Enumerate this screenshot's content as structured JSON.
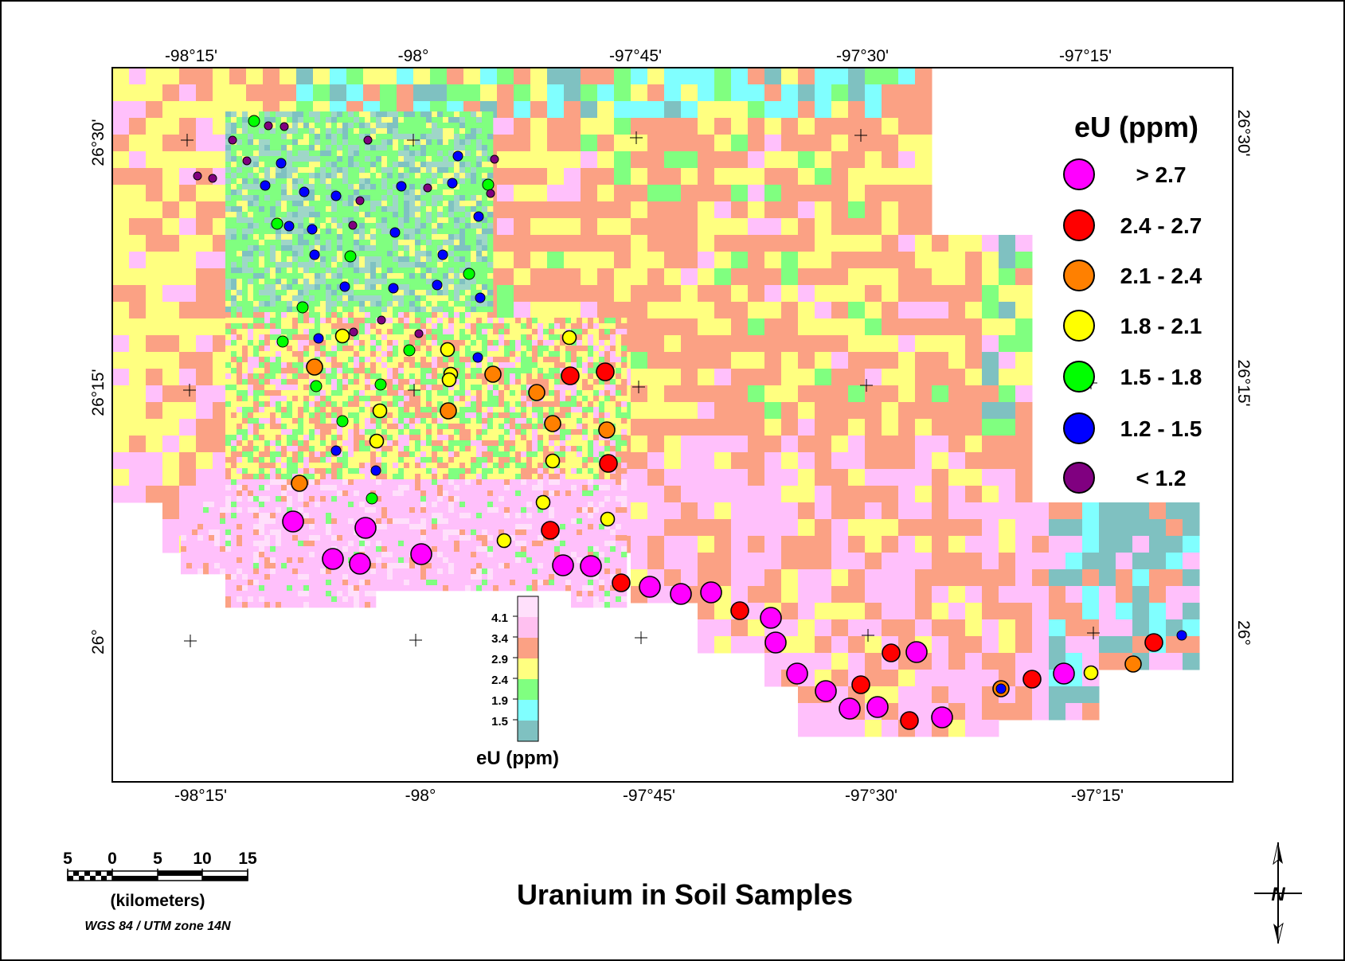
{
  "map": {
    "title": "Uranium in Soil Samples",
    "projection": "WGS 84 / UTM zone 14N",
    "scale_bar": {
      "labels": [
        "5",
        "0",
        "5",
        "10",
        "15"
      ],
      "unit": "(kilometers)"
    },
    "longitude_ticks": [
      "-98°15'",
      "-98°",
      "-97°45'",
      "-97°30'",
      "-97°15'"
    ],
    "latitude_ticks": [
      "26°30'",
      "26°15'",
      "26°"
    ],
    "north_arrow_label": "N",
    "colors": {
      "teal": "#7fc1c1",
      "cyan": "#80ffff",
      "green": "#80ff80",
      "yellow": "#ffff80",
      "salmon": "#fba184",
      "pink": "#ffc0fb",
      "white": "#ffffff"
    }
  },
  "colorbar": {
    "title": "eU (ppm)",
    "labels": [
      "4.1",
      "3.4",
      "2.9",
      "2.4",
      "1.9",
      "1.5"
    ],
    "colors": [
      "#ffe0fb",
      "#ffc0f0",
      "#fba184",
      "#ffff80",
      "#80ff80",
      "#80ffff",
      "#7fc1c1"
    ]
  },
  "legend": {
    "title": "eU (ppm)",
    "items": [
      {
        "label": "> 2.7",
        "color": "#ff00ff"
      },
      {
        "label": "2.4 - 2.7",
        "color": "#ff0000"
      },
      {
        "label": "2.1 - 2.4",
        "color": "#ff8000"
      },
      {
        "label": "1.8 - 2.1",
        "color": "#ffff00"
      },
      {
        "label": "1.5 - 1.8",
        "color": "#00ff00"
      },
      {
        "label": "1.2 - 1.5",
        "color": "#0000ff"
      },
      {
        "label": "< 1.2",
        "color": "#800080"
      }
    ]
  }
}
